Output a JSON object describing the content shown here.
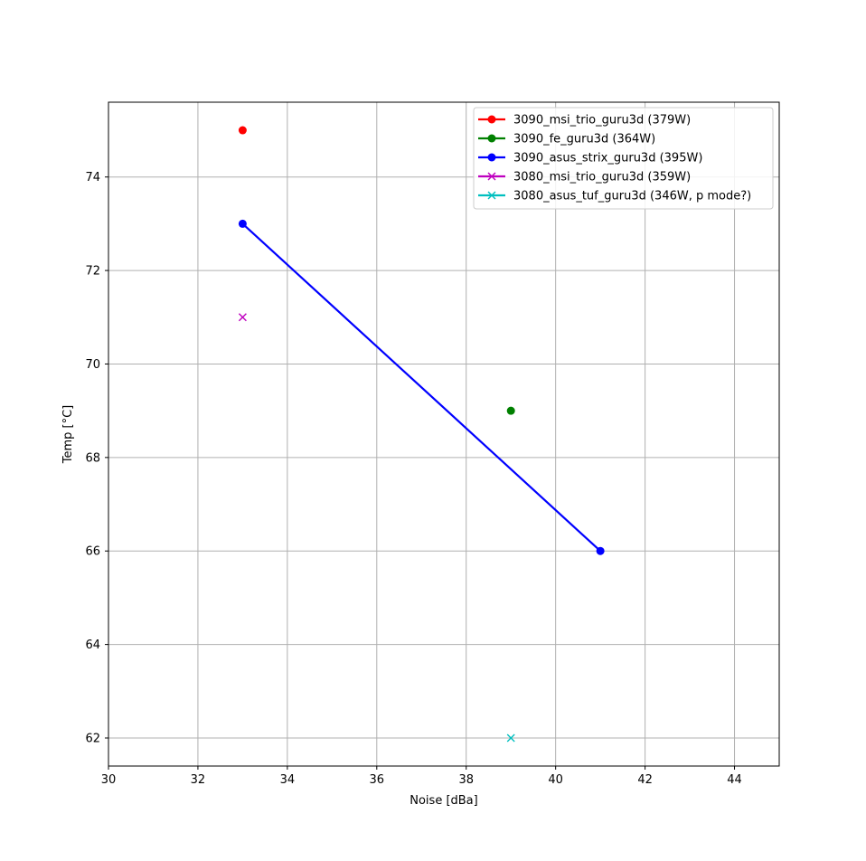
{
  "chart_data": {
    "type": "scatter",
    "title": "",
    "xlabel": "Noise [dBa]",
    "ylabel": "Temp [°C]",
    "xlim": [
      30,
      45
    ],
    "ylim": [
      61.4,
      75.6
    ],
    "xticks": [
      30,
      32,
      34,
      36,
      38,
      40,
      42,
      44
    ],
    "yticks": [
      62,
      64,
      66,
      68,
      70,
      72,
      74
    ],
    "grid": true,
    "legend_position": "top-right",
    "series": [
      {
        "name": "3090_msi_trio_guru3d (379W)",
        "color": "#ff0000",
        "marker": "circle",
        "points": [
          [
            33,
            75
          ]
        ]
      },
      {
        "name": "3090_fe_guru3d (364W)",
        "color": "#008000",
        "marker": "circle",
        "points": [
          [
            39,
            69
          ]
        ]
      },
      {
        "name": "3090_asus_strix_guru3d (395W)",
        "color": "#0000ff",
        "marker": "circle",
        "points": [
          [
            33,
            73
          ],
          [
            41,
            66
          ]
        ]
      },
      {
        "name": "3080_msi_trio_guru3d (359W)",
        "color": "#bf00bf",
        "marker": "x",
        "points": [
          [
            33,
            71
          ]
        ]
      },
      {
        "name": "3080_asus_tuf_guru3d (346W, p mode?)",
        "color": "#00bfbf",
        "marker": "x",
        "points": [
          [
            39,
            62
          ]
        ]
      }
    ]
  }
}
